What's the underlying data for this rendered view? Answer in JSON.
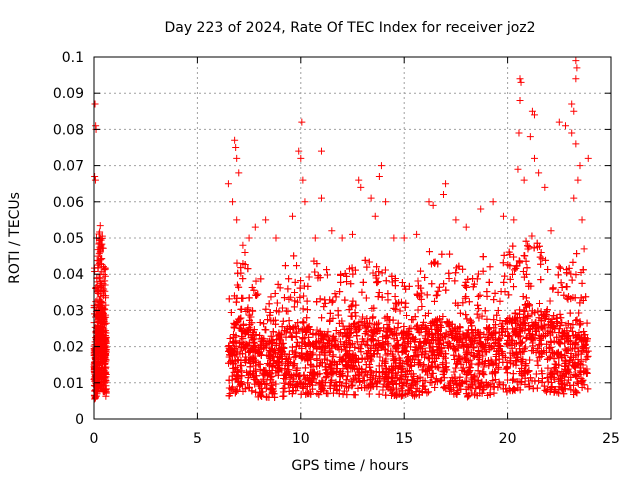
{
  "chart_data": {
    "type": "scatter",
    "title": "Day 223 of 2024, Rate Of TEC Index for receiver joz2",
    "xlabel": "GPS time / hours",
    "ylabel": "ROTI / TECUs",
    "xlim": [
      0,
      25
    ],
    "ylim": [
      0,
      0.1
    ],
    "xticks": [
      "0",
      "5",
      "10",
      "15",
      "20",
      "25"
    ],
    "yticks": [
      "0",
      "0.01",
      "0.02",
      "0.03",
      "0.04",
      "0.05",
      "0.06",
      "0.07",
      "0.08",
      "0.09",
      "0.1"
    ],
    "grid": true,
    "marker": "plus",
    "color": "#ff0000",
    "series": [
      {
        "name": "",
        "density_profile": [
          {
            "x": 0.0,
            "y": 0.012
          },
          {
            "x": 0.1,
            "y": 0.015
          },
          {
            "x": 0.2,
            "y": 0.02
          },
          {
            "x": 0.3,
            "y": 0.022
          },
          {
            "x": 0.4,
            "y": 0.02
          },
          {
            "x": 0.5,
            "y": 0.018
          },
          {
            "x": 0.6,
            "y": 0.014
          },
          {
            "x": 6.5,
            "y": 0.014
          },
          {
            "x": 7.0,
            "y": 0.018
          },
          {
            "x": 7.5,
            "y": 0.016
          },
          {
            "x": 8.0,
            "y": 0.014
          },
          {
            "x": 9.0,
            "y": 0.015
          },
          {
            "x": 10.0,
            "y": 0.017
          },
          {
            "x": 11.0,
            "y": 0.015
          },
          {
            "x": 12.0,
            "y": 0.016
          },
          {
            "x": 13.0,
            "y": 0.017
          },
          {
            "x": 14.0,
            "y": 0.016
          },
          {
            "x": 15.0,
            "y": 0.015
          },
          {
            "x": 16.0,
            "y": 0.016
          },
          {
            "x": 17.0,
            "y": 0.018
          },
          {
            "x": 18.0,
            "y": 0.015
          },
          {
            "x": 19.0,
            "y": 0.016
          },
          {
            "x": 20.0,
            "y": 0.018
          },
          {
            "x": 21.0,
            "y": 0.02
          },
          {
            "x": 22.0,
            "y": 0.018
          },
          {
            "x": 23.0,
            "y": 0.017
          },
          {
            "x": 23.9,
            "y": 0.016
          }
        ],
        "points": [
          {
            "x": 0.05,
            "y": 0.087
          },
          {
            "x": 0.08,
            "y": 0.081
          },
          {
            "x": 0.1,
            "y": 0.08
          },
          {
            "x": 0.03,
            "y": 0.067
          },
          {
            "x": 0.07,
            "y": 0.066
          },
          {
            "x": 0.12,
            "y": 0.05
          },
          {
            "x": 0.2,
            "y": 0.045
          },
          {
            "x": 0.3,
            "y": 0.04
          },
          {
            "x": 6.5,
            "y": 0.065
          },
          {
            "x": 6.7,
            "y": 0.06
          },
          {
            "x": 6.8,
            "y": 0.077
          },
          {
            "x": 6.85,
            "y": 0.075
          },
          {
            "x": 6.9,
            "y": 0.072
          },
          {
            "x": 7.0,
            "y": 0.068
          },
          {
            "x": 6.9,
            "y": 0.055
          },
          {
            "x": 7.2,
            "y": 0.048
          },
          {
            "x": 7.5,
            "y": 0.05
          },
          {
            "x": 7.8,
            "y": 0.053
          },
          {
            "x": 8.3,
            "y": 0.055
          },
          {
            "x": 8.8,
            "y": 0.05
          },
          {
            "x": 9.6,
            "y": 0.056
          },
          {
            "x": 9.9,
            "y": 0.074
          },
          {
            "x": 10.0,
            "y": 0.072
          },
          {
            "x": 10.1,
            "y": 0.066
          },
          {
            "x": 10.05,
            "y": 0.082
          },
          {
            "x": 10.2,
            "y": 0.06
          },
          {
            "x": 10.7,
            "y": 0.05
          },
          {
            "x": 11.0,
            "y": 0.074
          },
          {
            "x": 11.0,
            "y": 0.061
          },
          {
            "x": 11.5,
            "y": 0.052
          },
          {
            "x": 12.0,
            "y": 0.05
          },
          {
            "x": 12.5,
            "y": 0.051
          },
          {
            "x": 12.8,
            "y": 0.066
          },
          {
            "x": 12.9,
            "y": 0.064
          },
          {
            "x": 13.4,
            "y": 0.061
          },
          {
            "x": 13.6,
            "y": 0.056
          },
          {
            "x": 13.9,
            "y": 0.07
          },
          {
            "x": 13.8,
            "y": 0.067
          },
          {
            "x": 14.1,
            "y": 0.06
          },
          {
            "x": 14.5,
            "y": 0.05
          },
          {
            "x": 15.0,
            "y": 0.05
          },
          {
            "x": 15.6,
            "y": 0.051
          },
          {
            "x": 16.2,
            "y": 0.06
          },
          {
            "x": 16.4,
            "y": 0.059
          },
          {
            "x": 17.0,
            "y": 0.065
          },
          {
            "x": 16.9,
            "y": 0.062
          },
          {
            "x": 17.5,
            "y": 0.055
          },
          {
            "x": 18.0,
            "y": 0.053
          },
          {
            "x": 18.7,
            "y": 0.058
          },
          {
            "x": 19.3,
            "y": 0.06
          },
          {
            "x": 19.8,
            "y": 0.056
          },
          {
            "x": 20.3,
            "y": 0.055
          },
          {
            "x": 20.6,
            "y": 0.094
          },
          {
            "x": 20.65,
            "y": 0.093
          },
          {
            "x": 20.6,
            "y": 0.088
          },
          {
            "x": 20.55,
            "y": 0.079
          },
          {
            "x": 20.5,
            "y": 0.069
          },
          {
            "x": 20.8,
            "y": 0.066
          },
          {
            "x": 21.2,
            "y": 0.085
          },
          {
            "x": 21.3,
            "y": 0.084
          },
          {
            "x": 21.1,
            "y": 0.078
          },
          {
            "x": 21.3,
            "y": 0.072
          },
          {
            "x": 21.5,
            "y": 0.068
          },
          {
            "x": 21.8,
            "y": 0.064
          },
          {
            "x": 22.1,
            "y": 0.052
          },
          {
            "x": 22.5,
            "y": 0.082
          },
          {
            "x": 22.8,
            "y": 0.081
          },
          {
            "x": 23.1,
            "y": 0.087
          },
          {
            "x": 23.2,
            "y": 0.085
          },
          {
            "x": 23.3,
            "y": 0.099
          },
          {
            "x": 23.35,
            "y": 0.097
          },
          {
            "x": 23.3,
            "y": 0.094
          },
          {
            "x": 23.1,
            "y": 0.079
          },
          {
            "x": 23.3,
            "y": 0.076
          },
          {
            "x": 23.5,
            "y": 0.07
          },
          {
            "x": 23.9,
            "y": 0.072
          },
          {
            "x": 23.4,
            "y": 0.066
          },
          {
            "x": 23.2,
            "y": 0.061
          },
          {
            "x": 23.6,
            "y": 0.055
          },
          {
            "x": 23.7,
            "y": 0.047
          }
        ]
      }
    ]
  }
}
